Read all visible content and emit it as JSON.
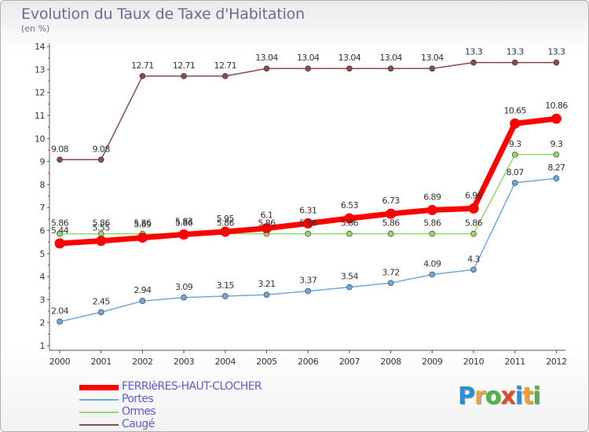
{
  "header": {
    "title": "Evolution du Taux de Taxe d'Habitation",
    "subtitle": "(en %)"
  },
  "logo": {
    "letters": [
      "P",
      "r",
      "o",
      "x",
      "i",
      "t",
      "i"
    ],
    "colors": [
      "#2a8fd6",
      "#e8a33c",
      "#4fb347",
      "#e04a2a",
      "#2a8fd6",
      "#e8a33c",
      "#4fb347"
    ]
  },
  "chart_data": {
    "type": "line",
    "title": "Evolution du Taux de Taxe d'Habitation",
    "ylabel": "(en %)",
    "xlabel": "",
    "x": [
      "2000",
      "2001",
      "2002",
      "2003",
      "2004",
      "2005",
      "2006",
      "2007",
      "2008",
      "2009",
      "2010",
      "2011",
      "2012"
    ],
    "ylim": [
      1,
      14
    ],
    "yticks": [
      "1",
      "2",
      "3",
      "4",
      "5",
      "6",
      "7",
      "8",
      "9",
      "10",
      "11",
      "12",
      "13",
      "14"
    ],
    "grid": false,
    "legend_position": "bottom-left",
    "series": [
      {
        "name": "FERRIèRES-HAUT-CLOCHER",
        "color": "#ff0000",
        "values": [
          5.44,
          5.55,
          5.69,
          5.83,
          5.95,
          6.1,
          6.31,
          6.53,
          6.73,
          6.89,
          6.96,
          10.65,
          10.86
        ],
        "labels": [
          "5.44",
          "5.55",
          "5.69",
          "5.83",
          "5.95",
          "6.1",
          "6.31",
          "6.53",
          "6.73",
          "6.89",
          "6.96",
          "10.65",
          "10.86"
        ]
      },
      {
        "name": "Portes",
        "color": "#6fa8dc",
        "values": [
          2.04,
          2.45,
          2.94,
          3.09,
          3.15,
          3.21,
          3.37,
          3.54,
          3.72,
          4.09,
          4.3,
          8.07,
          8.27
        ],
        "labels": [
          "2.04",
          "2.45",
          "2.94",
          "3.09",
          "3.15",
          "3.21",
          "3.37",
          "3.54",
          "3.72",
          "4.09",
          "4.3",
          "8.07",
          "8.27"
        ]
      },
      {
        "name": "Ormes",
        "color": "#93d86a",
        "values": [
          5.86,
          5.86,
          5.86,
          5.86,
          5.86,
          5.86,
          5.86,
          5.86,
          5.86,
          5.86,
          5.86,
          9.3,
          9.3
        ],
        "labels": [
          "5.86",
          "5.86",
          "5.86",
          "5.86",
          "5.86",
          "5.86",
          "5.86",
          "5.86",
          "5.86",
          "5.86",
          "5.86",
          "9.3",
          "9.3"
        ]
      },
      {
        "name": "Caugé",
        "color": "#8b4a4a",
        "values": [
          9.08,
          9.08,
          12.71,
          12.71,
          12.71,
          13.04,
          13.04,
          13.04,
          13.04,
          13.04,
          13.3,
          13.3,
          13.3
        ],
        "labels": [
          "9.08",
          "9.08",
          "12.71",
          "12.71",
          "12.71",
          "13.04",
          "13.04",
          "13.04",
          "13.04",
          "13.04",
          "13.3",
          "13.3",
          "13.3"
        ]
      }
    ]
  }
}
